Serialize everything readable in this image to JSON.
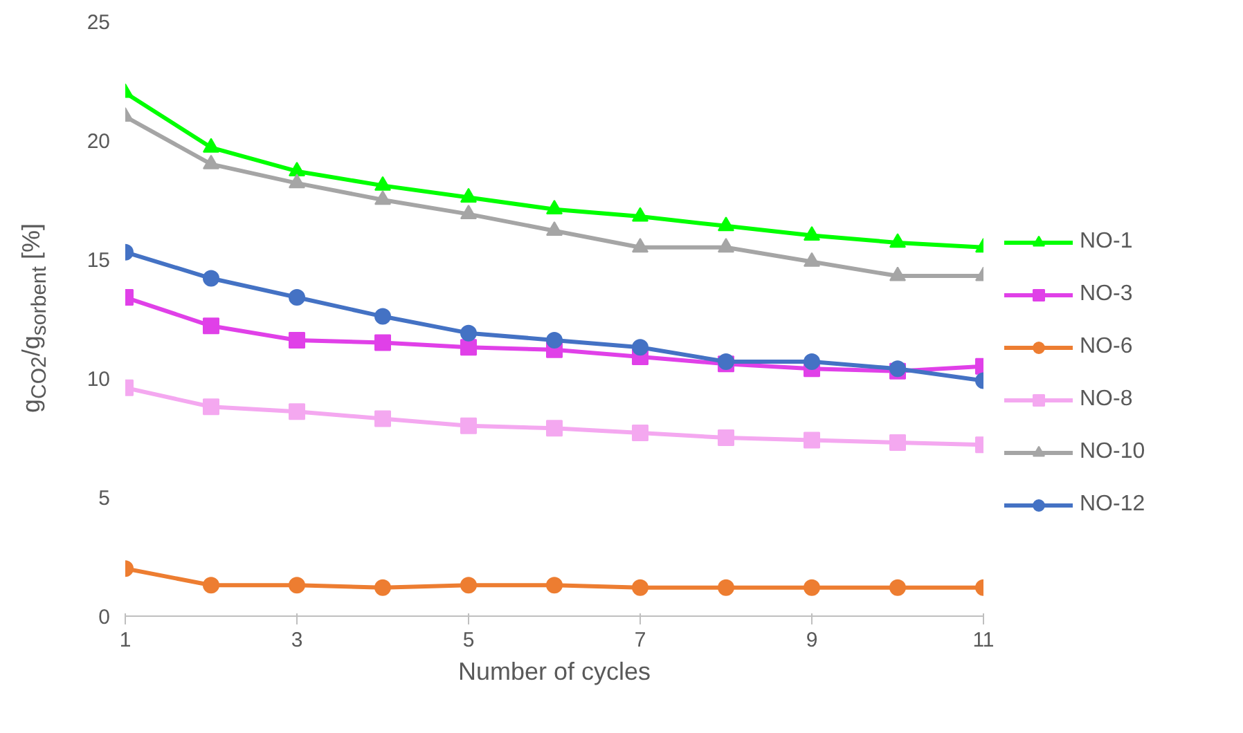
{
  "chart_data": {
    "type": "line",
    "xlabel": "Number of cycles",
    "ylabel": "g$_{CO2}$/g$_{sorbent}$ [%]",
    "x": [
      1,
      2,
      3,
      4,
      5,
      6,
      7,
      8,
      9,
      10,
      11
    ],
    "xlim": [
      1,
      11
    ],
    "xticks": [
      1,
      3,
      5,
      7,
      9,
      11
    ],
    "ylim": [
      0,
      25
    ],
    "yticks": [
      0,
      5,
      10,
      15,
      20,
      25
    ],
    "grid": false,
    "legend": "right",
    "series": [
      {
        "name": "NO-1",
        "color": "#00ff00",
        "marker": "triangle",
        "values": [
          22.0,
          19.7,
          18.7,
          18.1,
          17.6,
          17.1,
          16.8,
          16.4,
          16.0,
          15.7,
          15.5
        ]
      },
      {
        "name": "NO-3",
        "color": "#e040e8",
        "marker": "square",
        "values": [
          13.4,
          12.2,
          11.6,
          11.5,
          11.3,
          11.2,
          10.9,
          10.6,
          10.4,
          10.3,
          10.5
        ]
      },
      {
        "name": "NO-6",
        "color": "#ed7d31",
        "marker": "circle",
        "values": [
          2.0,
          1.3,
          1.3,
          1.2,
          1.3,
          1.3,
          1.2,
          1.2,
          1.2,
          1.2,
          1.2
        ]
      },
      {
        "name": "NO-8",
        "color": "#f4a8f0",
        "marker": "square",
        "values": [
          9.6,
          8.8,
          8.6,
          8.3,
          8.0,
          7.9,
          7.7,
          7.5,
          7.4,
          7.3,
          7.2
        ]
      },
      {
        "name": "NO-10",
        "color": "#a5a5a5",
        "marker": "triangle",
        "values": [
          21.0,
          19.0,
          18.2,
          17.5,
          16.9,
          16.2,
          15.5,
          15.5,
          14.9,
          14.3,
          14.3
        ]
      },
      {
        "name": "NO-12",
        "color": "#4472c4",
        "marker": "circle",
        "values": [
          15.3,
          14.2,
          13.4,
          12.6,
          11.9,
          11.6,
          11.3,
          10.7,
          10.7,
          10.4,
          9.9
        ]
      }
    ]
  }
}
